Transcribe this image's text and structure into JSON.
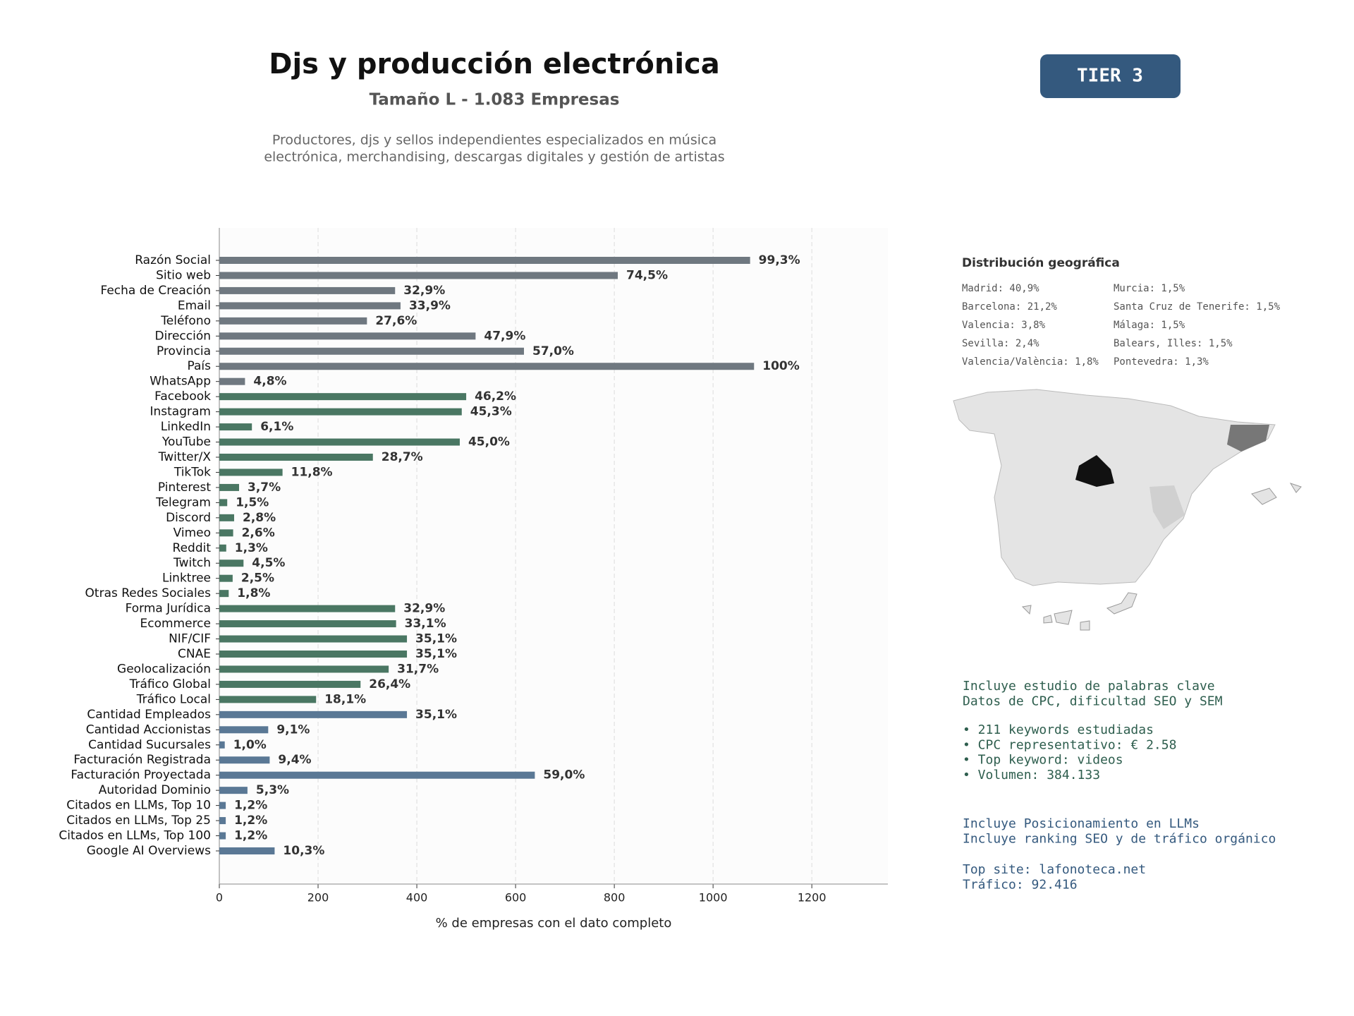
{
  "chart_data": {
    "type": "barh",
    "title": "Djs y producción electrónica",
    "subtitle": "Tamaño L - 1.083 Empresas",
    "description": [
      "Productores, djs y sellos independientes especializados en música",
      "electrónica, merchandising, descargas digitales y gestión de artistas"
    ],
    "badge": "TIER 3",
    "xlabel": "% de empresas con el dato completo",
    "categories": [
      "Razón Social",
      "Sitio web",
      "Fecha de Creación",
      "Email",
      "Teléfono",
      "Dirección",
      "Provincia",
      "País",
      "WhatsApp",
      "Facebook",
      "Instagram",
      "LinkedIn",
      "YouTube",
      "Twitter/X",
      "TikTok",
      "Pinterest",
      "Telegram",
      "Discord",
      "Vimeo",
      "Reddit",
      "Twitch",
      "Linktree",
      "Otras Redes Sociales",
      "Forma Jurídica",
      "Ecommerce",
      "NIF/CIF",
      "CNAE",
      "Geolocalización",
      "Tráfico Global",
      "Tráfico Local",
      "Cantidad Empleados",
      "Cantidad Accionistas",
      "Cantidad Sucursales",
      "Facturación Registrada",
      "Facturación Proyectada",
      "Autoridad Dominio",
      "Citados en LLMs, Top 10",
      "Citados en LLMs, Top 25",
      "Citados en LLMs, Top 100",
      "Google AI Overviews"
    ],
    "values": [
      1075,
      807,
      356,
      367,
      299,
      519,
      617,
      1083,
      52,
      500,
      491,
      66,
      487,
      311,
      128,
      40,
      16,
      30,
      28,
      14,
      49,
      27,
      19,
      356,
      358,
      380,
      380,
      343,
      286,
      196,
      380,
      99,
      11,
      102,
      639,
      57,
      13,
      13,
      13,
      112
    ],
    "value_labels": [
      "99,3%",
      "74,5%",
      "32,9%",
      "33,9%",
      "27,6%",
      "47,9%",
      "57,0%",
      "100%",
      "4,8%",
      "46,2%",
      "45,3%",
      "6,1%",
      "45,0%",
      "28,7%",
      "11,8%",
      "3,7%",
      "1,5%",
      "2,8%",
      "2,6%",
      "1,3%",
      "4,5%",
      "2,5%",
      "1,8%",
      "32,9%",
      "33,1%",
      "35,1%",
      "35,1%",
      "31,7%",
      "26,4%",
      "18,1%",
      "35,1%",
      "9,1%",
      "1,0%",
      "9,4%",
      "59,0%",
      "5,3%",
      "1,2%",
      "1,2%",
      "1,2%",
      "10,3%"
    ],
    "colors": [
      "#6f7880",
      "#6f7880",
      "#6f7880",
      "#6f7880",
      "#6f7880",
      "#6f7880",
      "#6f7880",
      "#6f7880",
      "#6f7880",
      "#4a7763",
      "#4a7763",
      "#4a7763",
      "#4a7763",
      "#4a7763",
      "#4a7763",
      "#4a7763",
      "#4a7763",
      "#4a7763",
      "#4a7763",
      "#4a7763",
      "#4a7763",
      "#4a7763",
      "#4a7763",
      "#4a7763",
      "#4a7763",
      "#4a7763",
      "#4a7763",
      "#4a7763",
      "#4a7763",
      "#4a7763",
      "#5a7895",
      "#5a7895",
      "#5a7895",
      "#5a7895",
      "#5a7895",
      "#5a7895",
      "#5a7895",
      "#5a7895",
      "#5a7895",
      "#5a7895"
    ],
    "xlim": [
      0,
      1354
    ],
    "xticks": [
      0,
      200,
      400,
      600,
      800,
      1000,
      1200
    ],
    "grid": true
  },
  "geo": {
    "title": "Distribución geográfica",
    "items": [
      "Madrid: 40,9%",
      "Barcelona: 21,2%",
      "Valencia: 3,8%",
      "Sevilla: 2,4%",
      "Valencia/València: 1,8%",
      "Murcia: 1,5%",
      "Santa Cruz de Tenerife: 1,5%",
      "Málaga: 1,5%",
      "Balears, Illes: 1,5%",
      "Pontevedra: 1,3%"
    ]
  },
  "keywords": {
    "lines": [
      "Incluye estudio de palabras clave",
      "Datos de CPC, dificultad SEO y SEM"
    ],
    "bullets": [
      "• 211 keywords estudiadas",
      "• CPC representativo: € 2.58",
      "• Top keyword: videos",
      "• Volumen: 384.133"
    ]
  },
  "llm": {
    "lines": [
      "Incluye Posicionamiento en LLMs",
      "Incluye ranking SEO y de tráfico orgánico"
    ],
    "top": [
      "Top site: lafonoteca.net",
      "Tráfico: 92.416"
    ]
  }
}
